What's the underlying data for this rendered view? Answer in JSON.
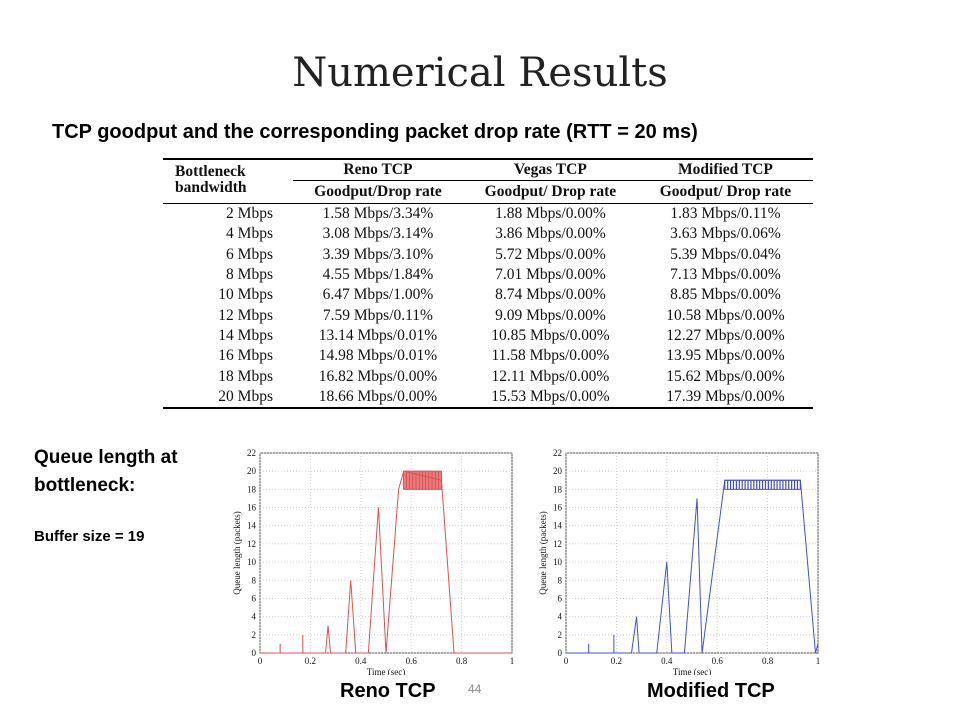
{
  "slide": {
    "title": "Numerical Results",
    "subtitle": "TCP goodput and the corresponding packet drop rate (RTT = 20 ms)",
    "queue_label_line1": "Queue length at",
    "queue_label_line2": "bottleneck:",
    "buffer_label": "Buffer size = 19",
    "caption_reno": "Reno TCP",
    "caption_modified": "Modified TCP",
    "page_number": "44"
  },
  "table": {
    "bw_header_line1": "Bottleneck",
    "bw_header_line2": "bandwidth",
    "groups": [
      "Reno TCP",
      "Vegas TCP",
      "Modified TCP"
    ],
    "subheaders": [
      "Goodput/Drop rate",
      "Goodput/ Drop rate",
      "Goodput/ Drop rate"
    ],
    "rows": [
      [
        "2 Mbps",
        "1.58 Mbps/3.34%",
        "1.88 Mbps/0.00%",
        "1.83 Mbps/0.11%"
      ],
      [
        "4 Mbps",
        "3.08 Mbps/3.14%",
        "3.86 Mbps/0.00%",
        "3.63 Mbps/0.06%"
      ],
      [
        "6 Mbps",
        "3.39 Mbps/3.10%",
        "5.72 Mbps/0.00%",
        "5.39 Mbps/0.04%"
      ],
      [
        "8 Mbps",
        "4.55 Mbps/1.84%",
        "7.01 Mbps/0.00%",
        "7.13 Mbps/0.00%"
      ],
      [
        "10 Mbps",
        "6.47 Mbps/1.00%",
        "8.74 Mbps/0.00%",
        "8.85 Mbps/0.00%"
      ],
      [
        "12 Mbps",
        "7.59 Mbps/0.11%",
        "9.09 Mbps/0.00%",
        "10.58 Mbps/0.00%"
      ],
      [
        "14 Mbps",
        "13.14 Mbps/0.01%",
        "10.85 Mbps/0.00%",
        "12.27 Mbps/0.00%"
      ],
      [
        "16 Mbps",
        "14.98 Mbps/0.01%",
        "11.58 Mbps/0.00%",
        "13.95 Mbps/0.00%"
      ],
      [
        "18 Mbps",
        "16.82 Mbps/0.00%",
        "12.11 Mbps/0.00%",
        "15.62 Mbps/0.00%"
      ],
      [
        "20 Mbps",
        "18.66 Mbps/0.00%",
        "15.53 Mbps/0.00%",
        "17.39 Mbps/0.00%"
      ]
    ]
  },
  "chart_data": [
    {
      "type": "line",
      "title": "",
      "xlabel": "Time (sec)",
      "ylabel": "Queue length (packets)",
      "xlim": [
        0,
        1
      ],
      "ylim": [
        0,
        22
      ],
      "xticks": [
        "0",
        "0.2",
        "0.4",
        "0.6",
        "0.8",
        "1"
      ],
      "yticks": [
        "0",
        "2",
        "4",
        "6",
        "8",
        "10",
        "12",
        "14",
        "16",
        "18",
        "20",
        "22"
      ],
      "grid": true,
      "color": "#e05050",
      "series": [
        {
          "x": [
            0.0,
            0.08,
            0.08,
            0.08,
            0.17,
            0.17,
            0.17,
            0.26,
            0.27,
            0.28,
            0.34,
            0.36,
            0.38,
            0.43,
            0.47,
            0.5,
            0.55,
            0.57,
            0.72,
            0.77,
            0.9,
            1.0
          ],
          "y": [
            0,
            0,
            1,
            0,
            0,
            2,
            0,
            0,
            3,
            0,
            0,
            8,
            0,
            0,
            16,
            0,
            18,
            20,
            19,
            0,
            0,
            0
          ],
          "oscillation": {
            "x_start": 0.57,
            "x_end": 0.72,
            "y_low": 18,
            "y_high": 20
          }
        }
      ]
    },
    {
      "type": "line",
      "title": "",
      "xlabel": "Time (sec)",
      "ylabel": "Queue length (packets)",
      "xlim": [
        0,
        1
      ],
      "ylim": [
        0,
        22
      ],
      "xticks": [
        "0",
        "0.2",
        "0.4",
        "0.6",
        "0.8",
        "1"
      ],
      "yticks": [
        "0",
        "2",
        "4",
        "6",
        "8",
        "10",
        "12",
        "14",
        "16",
        "18",
        "20",
        "22"
      ],
      "grid": true,
      "color": "#4050d0",
      "series": [
        {
          "x": [
            0.0,
            0.09,
            0.09,
            0.09,
            0.19,
            0.19,
            0.19,
            0.26,
            0.28,
            0.29,
            0.36,
            0.4,
            0.42,
            0.47,
            0.52,
            0.54,
            0.63,
            0.93,
            0.99,
            1.0
          ],
          "y": [
            0,
            0,
            1,
            0,
            0,
            2,
            0,
            0,
            4,
            0,
            0,
            10,
            0,
            0,
            17,
            0,
            19,
            19,
            0,
            1
          ],
          "oscillation": {
            "x_start": 0.63,
            "x_end": 0.93,
            "y_low": 18,
            "y_high": 19
          }
        }
      ]
    }
  ]
}
